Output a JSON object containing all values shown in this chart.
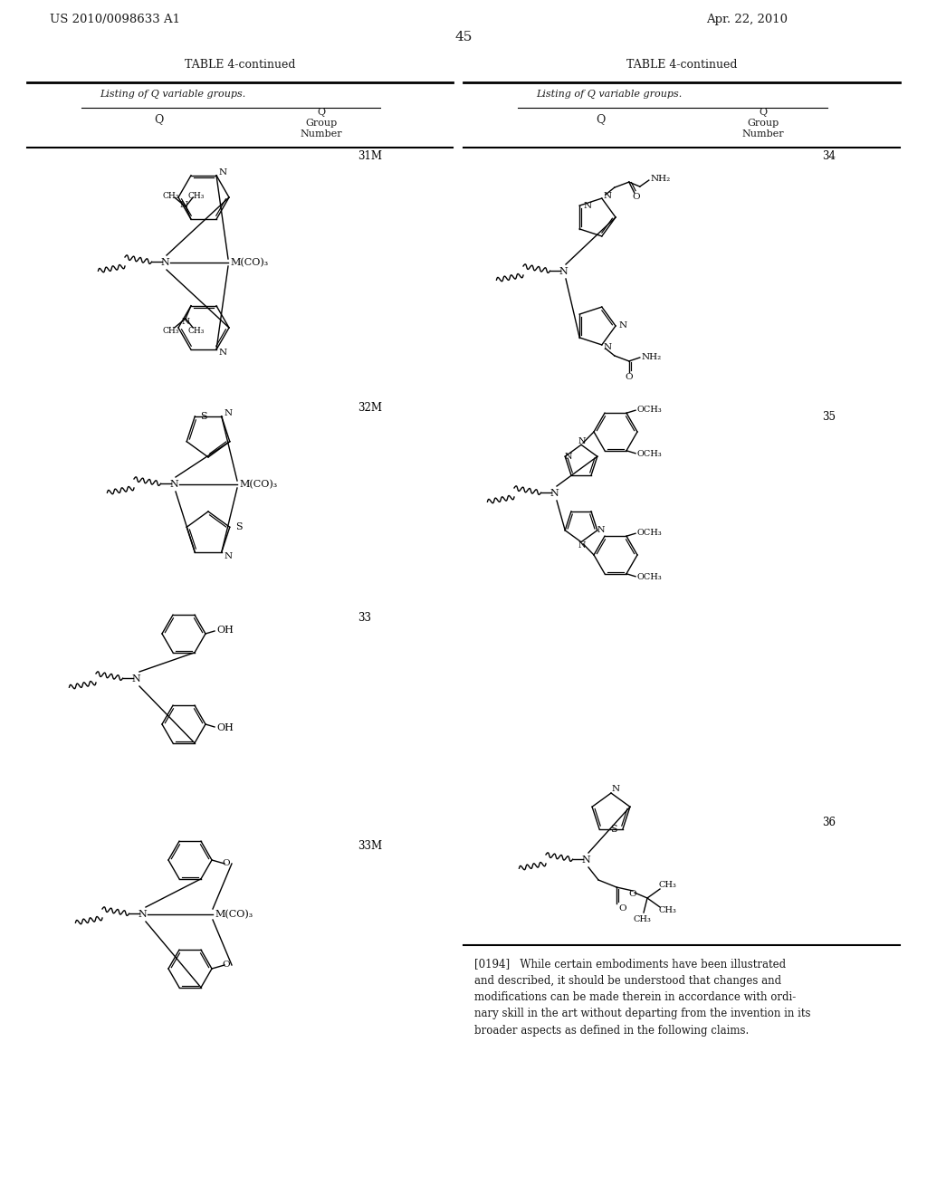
{
  "patent_number": "US 2010/0098633 A1",
  "patent_date": "Apr. 22, 2010",
  "page_number": "45",
  "table_title": "TABLE 4-continued",
  "table_subtitle": "Listing of Q variable groups.",
  "background_color": "#ffffff",
  "paragraph_text": "[0194]   While certain embodiments have been illustrated and described, it should be understood that changes and modifications can be made therein in accordance with ordinary skill in the art without departing from the invention in its broader aspects as defined in the following claims."
}
